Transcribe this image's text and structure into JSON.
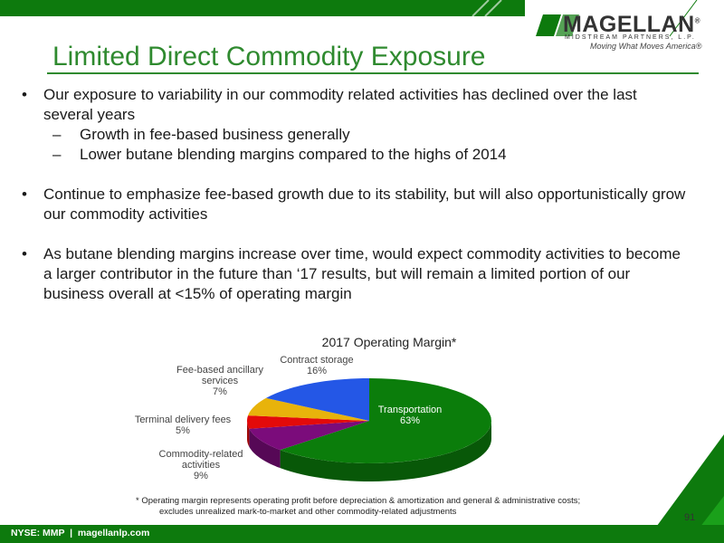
{
  "header": {
    "logo_name": "MAGELLAN",
    "logo_mark": "®",
    "logo_sub": "MIDSTREAM PARTNERS, L.P.",
    "tagline": "Moving What Moves America®"
  },
  "title": "Limited Direct Commodity Exposure",
  "bullets": [
    {
      "text": "Our exposure to variability in our commodity related activities has declined over the last several years",
      "subs": [
        "Growth in fee-based business generally",
        "Lower butane blending margins compared to the highs of 2014"
      ]
    },
    {
      "text": "Continue to emphasize fee-based growth due to its stability, but will also opportunistically grow our commodity activities",
      "subs": []
    },
    {
      "text": "As butane blending margins increase over time, would expect commodity activities to become a larger contributor in the future than ‘17 results, but will remain a limited portion of our business overall at <15% of operating margin",
      "subs": []
    }
  ],
  "chart_data": {
    "type": "pie",
    "title": "2017 Operating Margin*",
    "categories": [
      "Transportation",
      "Commodity-related activities",
      "Terminal delivery fees",
      "Fee-based ancillary services",
      "Contract storage"
    ],
    "values": [
      63,
      9,
      5,
      7,
      16
    ],
    "value_labels": [
      "63%",
      "9%",
      "5%",
      "7%",
      "16%"
    ],
    "colors": [
      "#0b7d0b",
      "#7b0c7b",
      "#e30a0a",
      "#e8b30b",
      "#2457e6"
    ]
  },
  "footnote": [
    "* Operating margin represents operating profit before depreciation & amortization and general & administrative costs;",
    "excludes unrealized mark-to-market and other commodity-related adjustments"
  ],
  "footer": {
    "text": "NYSE: MMP  |  magellanlp.com",
    "page": "91"
  }
}
